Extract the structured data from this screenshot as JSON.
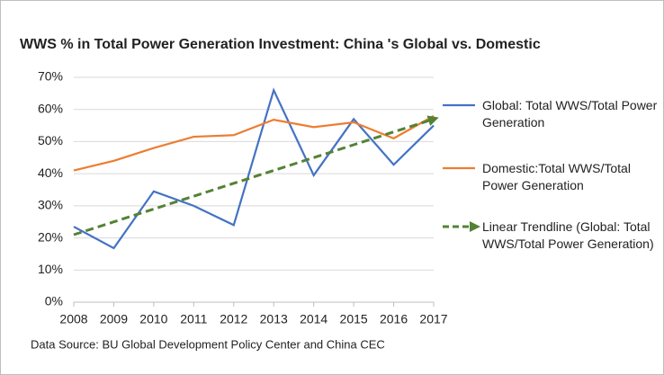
{
  "chart_data": {
    "type": "line",
    "title": "WWS % in Total Power Generation Investment: China 's Global vs. Domestic",
    "source": "Data Source: BU Global Development Policy Center and China CEC",
    "x": [
      2008,
      2009,
      2010,
      2011,
      2012,
      2013,
      2014,
      2015,
      2016,
      2017
    ],
    "xlim": [
      2008,
      2017
    ],
    "xticks": [
      2008,
      2009,
      2010,
      2011,
      2012,
      2013,
      2014,
      2015,
      2016,
      2017
    ],
    "ylim": [
      0,
      70
    ],
    "yticks": [
      {
        "value": 0,
        "label": "0%"
      },
      {
        "value": 10,
        "label": "10%"
      },
      {
        "value": 20,
        "label": "20%"
      },
      {
        "value": 30,
        "label": "30%"
      },
      {
        "value": 40,
        "label": "40%"
      },
      {
        "value": 50,
        "label": "50%"
      },
      {
        "value": 60,
        "label": "60%"
      },
      {
        "value": 70,
        "label": "70%"
      }
    ],
    "grid": true,
    "legend": "right",
    "series": [
      {
        "name": "Global: Total WWS/Total Power Generation",
        "color": "#4472c4",
        "values": [
          23.5,
          16.8,
          34.5,
          30,
          24,
          66,
          39.5,
          57,
          42.8,
          55
        ]
      },
      {
        "name": "Domestic:Total WWS/Total Power Generation",
        "color": "#ed7d31",
        "values": [
          41,
          44,
          48,
          51.5,
          52,
          56.8,
          54.5,
          56,
          51,
          58
        ]
      },
      {
        "name": "Linear Trendline (Global: Total WWS/Total Power Generation)",
        "color": "#548235",
        "dashed": true,
        "values": [
          21,
          25,
          29,
          33,
          37,
          41,
          45,
          49,
          53,
          57
        ]
      }
    ]
  }
}
